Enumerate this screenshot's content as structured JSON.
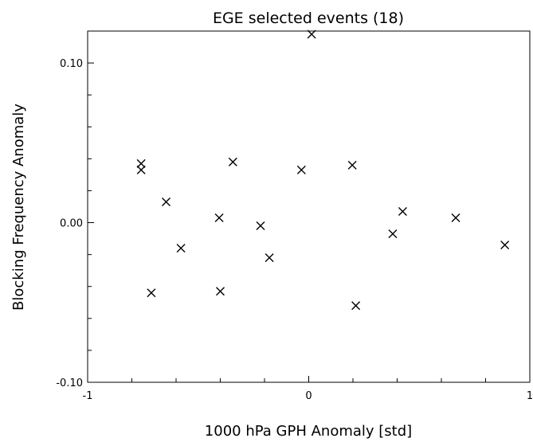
{
  "chart_data": {
    "type": "scatter",
    "title": "EGE selected events (18)",
    "xlabel": "1000 hPa GPH Anomaly [std]",
    "ylabel": "Blocking Frequency Anomaly",
    "xlim": [
      -1,
      1
    ],
    "ylim": [
      -0.1,
      0.12
    ],
    "x_ticks": [
      {
        "value": -1,
        "label": "-1"
      },
      {
        "value": 0,
        "label": "0"
      },
      {
        "value": 1,
        "label": "1"
      }
    ],
    "x_minor_ticks": [
      -0.8,
      -0.6,
      -0.4,
      -0.2,
      0.2,
      0.4,
      0.6,
      0.8
    ],
    "y_ticks": [
      {
        "value": -0.1,
        "label": "-0.10"
      },
      {
        "value": 0.0,
        "label": "0.00"
      },
      {
        "value": 0.1,
        "label": "0.10"
      }
    ],
    "y_minor_ticks": [
      -0.08,
      -0.06,
      -0.04,
      -0.02,
      0.02,
      0.04,
      0.06,
      0.08
    ],
    "marker": "x",
    "grid": false,
    "points": [
      {
        "x": 0.013,
        "y": 0.118
      },
      {
        "x": -0.758,
        "y": 0.037
      },
      {
        "x": -0.758,
        "y": 0.033
      },
      {
        "x": -0.343,
        "y": 0.038
      },
      {
        "x": -0.033,
        "y": 0.033
      },
      {
        "x": 0.197,
        "y": 0.036
      },
      {
        "x": -0.645,
        "y": 0.013
      },
      {
        "x": -0.405,
        "y": 0.003
      },
      {
        "x": -0.218,
        "y": -0.002
      },
      {
        "x": 0.425,
        "y": 0.007
      },
      {
        "x": 0.38,
        "y": -0.007
      },
      {
        "x": 0.665,
        "y": 0.003
      },
      {
        "x": 0.887,
        "y": -0.014
      },
      {
        "x": -0.578,
        "y": -0.016
      },
      {
        "x": -0.178,
        "y": -0.022
      },
      {
        "x": -0.712,
        "y": -0.044
      },
      {
        "x": -0.4,
        "y": -0.043
      },
      {
        "x": 0.213,
        "y": -0.052
      }
    ]
  }
}
